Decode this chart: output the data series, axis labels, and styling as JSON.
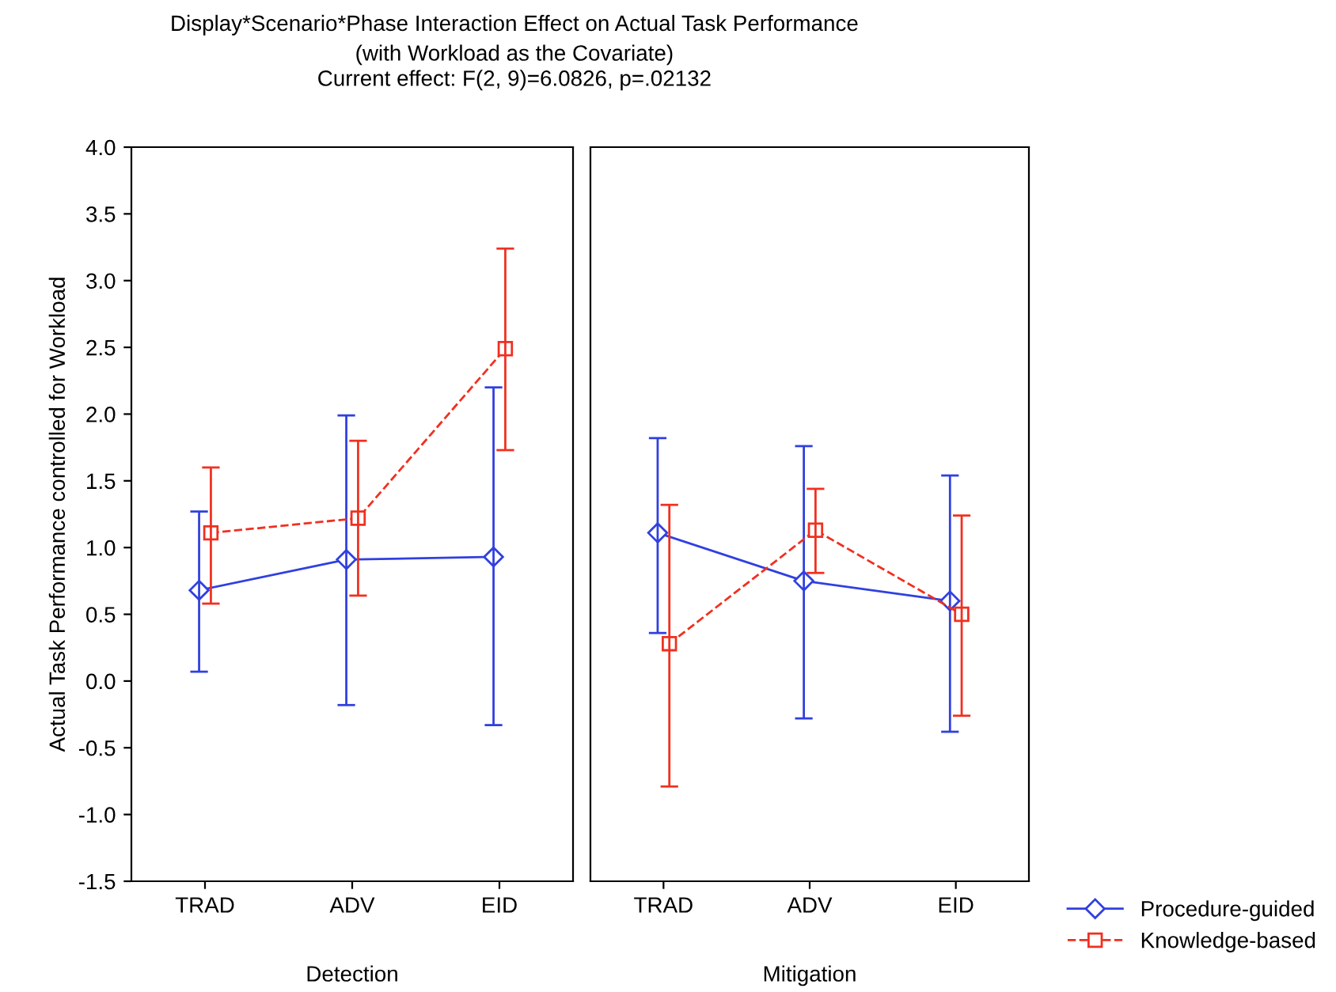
{
  "chart_data": [
    {
      "type": "line",
      "title": "Display*Scenario*Phase Interaction Effect on Actual Task Performance",
      "subtitle": "(with Workload as the Covariate)\nCurrent effect: F(2, 9)=6.0826, p=.02132",
      "ylabel": "Actual Task Performance controlled for Workload",
      "xlabel": "Detection",
      "categories": [
        "TRAD",
        "ADV",
        "EID"
      ],
      "ylim": [
        -1.5,
        4.0
      ],
      "yticks": [
        {
          "value": -1.5,
          "label": "-1.5"
        },
        {
          "value": -1.0,
          "label": "-1.0"
        },
        {
          "value": -0.5,
          "label": "-0.5"
        },
        {
          "value": 0.0,
          "label": "0.0"
        },
        {
          "value": 0.5,
          "label": "0.5"
        },
        {
          "value": 1.0,
          "label": "1.0"
        },
        {
          "value": 1.5,
          "label": "1.5"
        },
        {
          "value": 2.0,
          "label": "2.0"
        },
        {
          "value": 2.5,
          "label": "2.5"
        },
        {
          "value": 3.0,
          "label": "3.0"
        },
        {
          "value": 3.5,
          "label": "3.5"
        },
        {
          "value": 4.0,
          "label": "4.0"
        }
      ],
      "grid": false,
      "legend": "bottom right",
      "series": [
        {
          "name": "Procedure-guided",
          "color": "#3040e0",
          "marker": "diamond",
          "line_style": "solid",
          "values": [
            0.68,
            0.91,
            0.93
          ],
          "errors": [
            [
              0.07,
              1.27
            ],
            [
              -0.18,
              1.99
            ],
            [
              -0.33,
              2.2
            ]
          ]
        },
        {
          "name": "Knowledge-based",
          "color": "#f03020",
          "marker": "square",
          "line_style": "dashed",
          "values": [
            1.11,
            1.22,
            2.49
          ],
          "errors": [
            [
              0.58,
              1.6
            ],
            [
              0.64,
              1.8
            ],
            [
              1.73,
              3.24
            ]
          ]
        }
      ]
    },
    {
      "type": "line",
      "xlabel": "Mitigation",
      "categories": [
        "TRAD",
        "ADV",
        "EID"
      ],
      "ylim": [
        -1.5,
        4.0
      ],
      "tick_labels": "x",
      "grid": false,
      "series": [
        {
          "color": "#3040e0",
          "marker": "diamond",
          "line_style": "solid",
          "values": [
            1.11,
            0.75,
            0.6
          ],
          "errors": [
            [
              0.36,
              1.82
            ],
            [
              -0.28,
              1.76
            ],
            [
              -0.38,
              1.54
            ]
          ]
        },
        {
          "color": "#f03020",
          "marker": "square",
          "line_style": "dashed",
          "values": [
            0.28,
            1.13,
            0.5
          ],
          "errors": [
            [
              -0.79,
              1.32
            ],
            [
              0.81,
              1.44
            ],
            [
              -0.26,
              1.24
            ]
          ]
        }
      ]
    }
  ]
}
